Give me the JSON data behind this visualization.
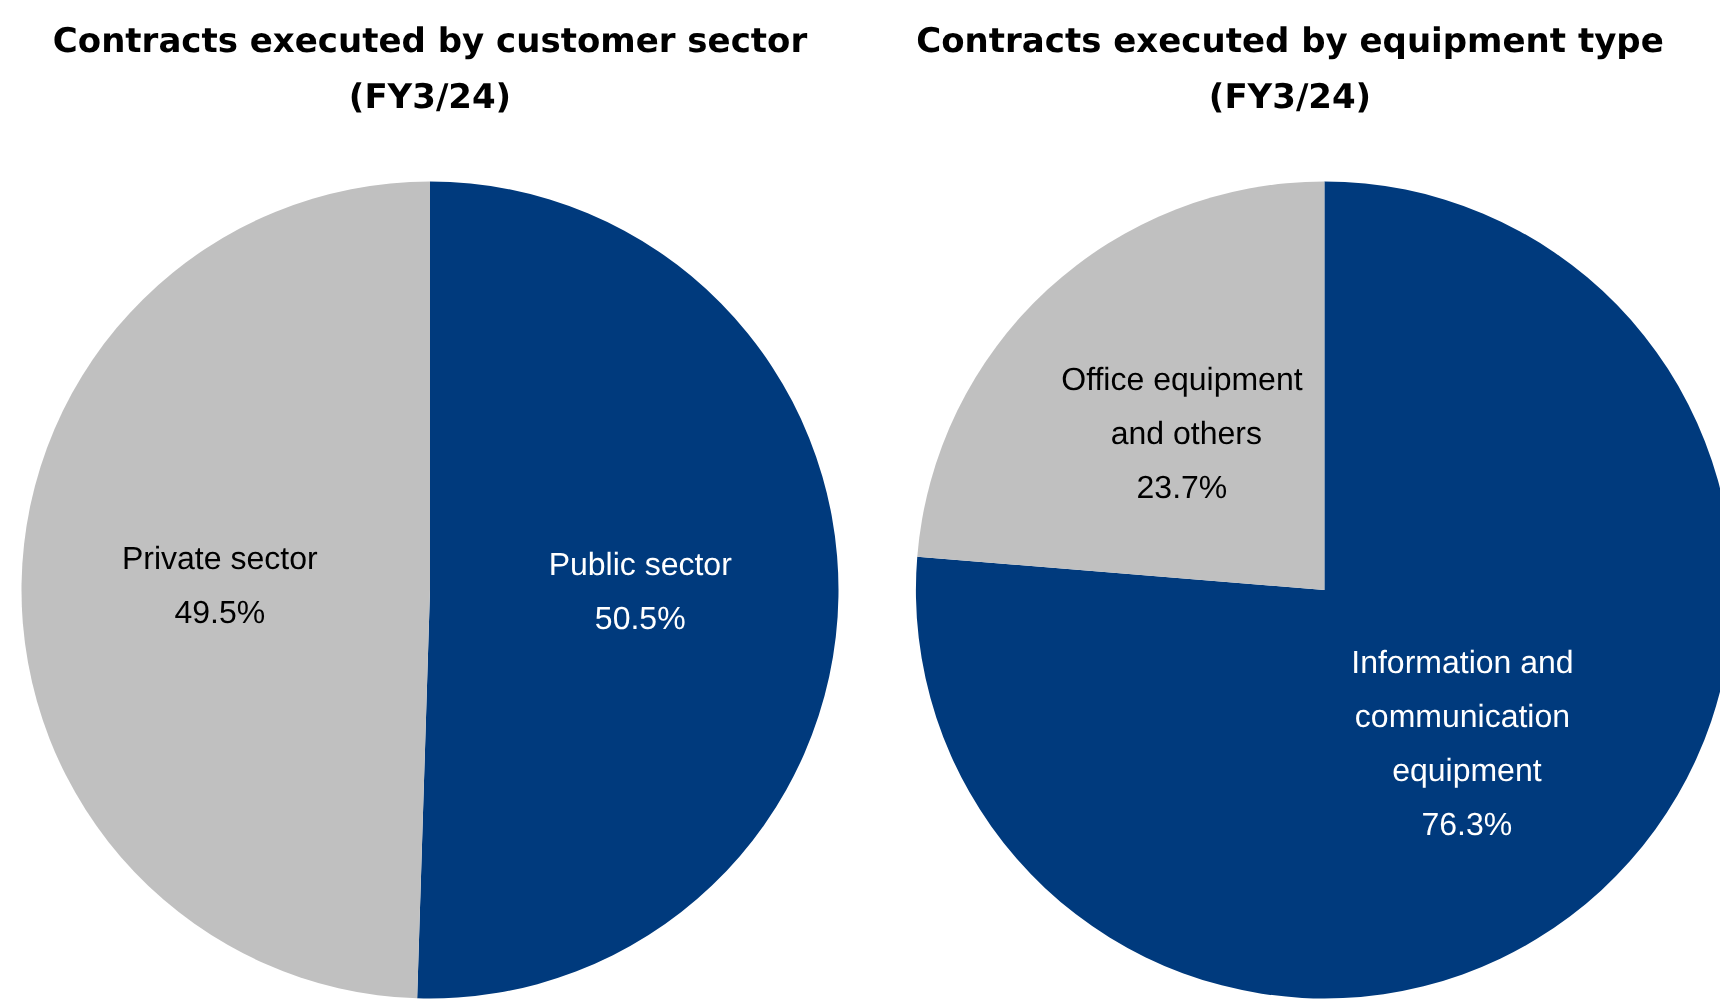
{
  "chart_data": [
    {
      "type": "pie",
      "title": "Contracts executed by customer sector\n(FY3/24)",
      "categories": [
        "Public sector",
        "Private sector"
      ],
      "values": [
        50.5,
        49.5
      ],
      "colors": [
        "#003a7d",
        "#c0c0c0"
      ],
      "value_labels": [
        "50.5%",
        "49.5%"
      ]
    },
    {
      "type": "pie",
      "title": "Contracts executed by equipment type\n(FY3/24)",
      "categories": [
        "Information and communication equipment",
        "Office equipment and others"
      ],
      "values": [
        76.3,
        23.7
      ],
      "colors": [
        "#003a7d",
        "#c0c0c0"
      ],
      "value_labels": [
        "76.3%",
        "23.7%"
      ]
    }
  ]
}
